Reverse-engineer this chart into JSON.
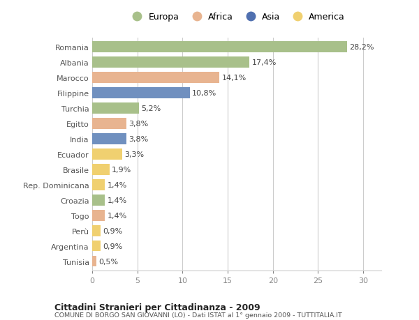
{
  "countries": [
    "Romania",
    "Albania",
    "Marocco",
    "Filippine",
    "Turchia",
    "Egitto",
    "India",
    "Ecuador",
    "Brasile",
    "Rep. Dominicana",
    "Croazia",
    "Togo",
    "Perù",
    "Argentina",
    "Tunisia"
  ],
  "values": [
    28.2,
    17.4,
    14.1,
    10.8,
    5.2,
    3.8,
    3.8,
    3.3,
    1.9,
    1.4,
    1.4,
    1.4,
    0.9,
    0.9,
    0.5
  ],
  "labels": [
    "28,2%",
    "17,4%",
    "14,1%",
    "10,8%",
    "5,2%",
    "3,8%",
    "3,8%",
    "3,3%",
    "1,9%",
    "1,4%",
    "1,4%",
    "1,4%",
    "0,9%",
    "0,9%",
    "0,5%"
  ],
  "continents": [
    "Europa",
    "Europa",
    "Africa",
    "Asia",
    "Europa",
    "Africa",
    "Asia",
    "America",
    "America",
    "America",
    "Europa",
    "Africa",
    "America",
    "America",
    "Africa"
  ],
  "colors": {
    "Europa": "#a8c08a",
    "Africa": "#e8b490",
    "Asia": "#7090bf",
    "America": "#f0d070"
  },
  "legend_dot_colors": {
    "Europa": "#a8c08a",
    "Africa": "#e8b490",
    "Asia": "#5070b0",
    "America": "#f0d070"
  },
  "fig_bg_color": "#ffffff",
  "plot_bg_color": "#ffffff",
  "title": "Cittadini Stranieri per Cittadinanza - 2009",
  "subtitle": "COMUNE DI BORGO SAN GIOVANNI (LO) - Dati ISTAT al 1° gennaio 2009 - TUTTITALIA.IT",
  "xlim": [
    0,
    32
  ],
  "xticks": [
    0,
    5,
    10,
    15,
    20,
    25,
    30
  ],
  "bar_height": 0.72,
  "label_fontsize": 8,
  "ytick_fontsize": 8,
  "xtick_fontsize": 8
}
